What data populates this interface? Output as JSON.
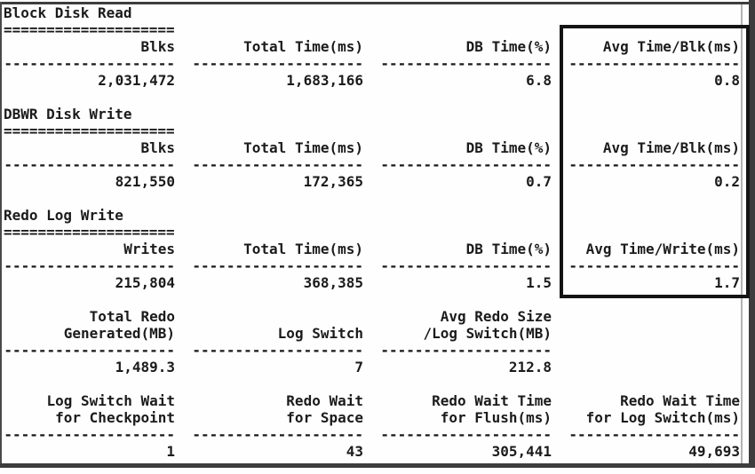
{
  "page": {
    "background": "#fefefe",
    "frame_color": "#3d3d3d",
    "text_color": "#1b1b1b"
  },
  "highlight": {
    "name": "avg-time-column-highlight",
    "description": "Thick black rectangle drawn around the Avg Time per block/write column of the three I/O sections",
    "color": "#141414"
  },
  "report": {
    "sections": [
      {
        "id": "block-disk-read",
        "title": "Block Disk Read",
        "underline": "====================",
        "columns": [
          {
            "header": "Blks",
            "sep": "--------------------",
            "value": "2,031,472"
          },
          {
            "header": "Total Time(ms)",
            "sep": "--------------------",
            "value": "1,683,166"
          },
          {
            "header": "DB Time(%)",
            "sep": "--------------------",
            "value": "6.8"
          },
          {
            "header": "Avg Time/Blk(ms)",
            "sep": "--------------------",
            "value": "0.8"
          }
        ]
      },
      {
        "id": "dbwr-disk-write",
        "title": "DBWR Disk Write",
        "underline": "====================",
        "columns": [
          {
            "header": "Blks",
            "sep": "--------------------",
            "value": "821,550"
          },
          {
            "header": "Total Time(ms)",
            "sep": "--------------------",
            "value": "172,365"
          },
          {
            "header": "DB Time(%)",
            "sep": "--------------------",
            "value": "0.7"
          },
          {
            "header": "Avg Time/Blk(ms)",
            "sep": "--------------------",
            "value": "0.2"
          }
        ]
      },
      {
        "id": "redo-log-write",
        "title": "Redo Log Write",
        "underline": "====================",
        "columns": [
          {
            "header": "Writes",
            "sep": "--------------------",
            "value": "215,804"
          },
          {
            "header": "Total Time(ms)",
            "sep": "--------------------",
            "value": "368,385"
          },
          {
            "header": "DB Time(%)",
            "sep": "--------------------",
            "value": "1.5"
          },
          {
            "header": "Avg Time/Write(ms)",
            "sep": "--------------------",
            "value": "1.7"
          }
        ]
      },
      {
        "id": "redo-generation",
        "title": null,
        "underline": null,
        "columns": [
          {
            "header": "Total Redo\nGenerated(MB)",
            "sep": "--------------------",
            "value": "1,489.3"
          },
          {
            "header": "\nLog Switch",
            "sep": "--------------------",
            "value": "7"
          },
          {
            "header": "Avg Redo Size\n/Log Switch(MB)",
            "sep": "--------------------",
            "value": "212.8"
          },
          {
            "header": "",
            "sep": "",
            "value": ""
          }
        ]
      },
      {
        "id": "redo-waits",
        "title": null,
        "underline": null,
        "columns": [
          {
            "header": "Log Switch Wait\nfor Checkpoint",
            "sep": "--------------------",
            "value": "1"
          },
          {
            "header": "Redo Wait\nfor Space",
            "sep": "--------------------",
            "value": "43"
          },
          {
            "header": "Redo Wait Time\nfor Flush(ms)",
            "sep": "--------------------",
            "value": "305,441"
          },
          {
            "header": "Redo Wait Time\nfor Log Switch(ms)",
            "sep": "--------------------",
            "value": "49,693"
          }
        ]
      }
    ]
  }
}
